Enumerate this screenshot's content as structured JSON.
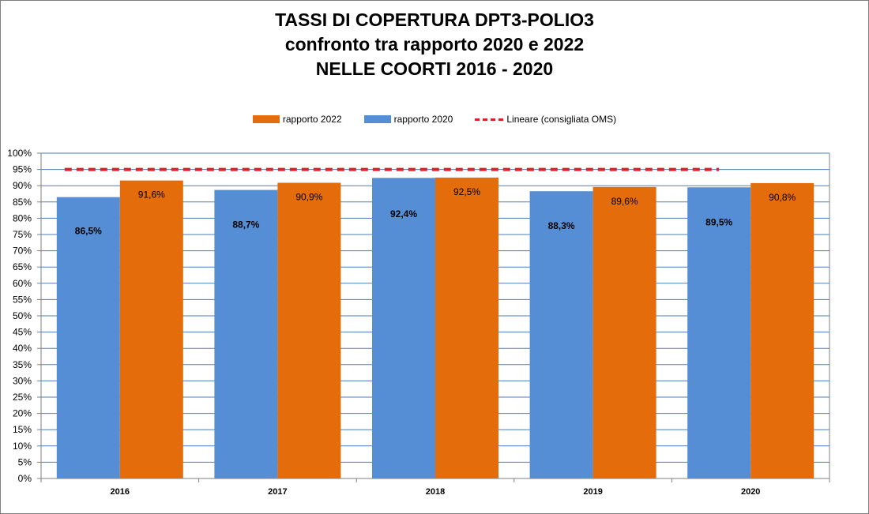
{
  "chart_data": {
    "type": "bar",
    "title": [
      "TASSI DI COPERTURA DPT3-POLIO3",
      "confronto tra rapporto 2020 e 2022",
      "NELLE COORTI 2016 - 2020"
    ],
    "categories": [
      "2016",
      "2017",
      "2018",
      "2019",
      "2020"
    ],
    "series": [
      {
        "name": "rapporto 2020",
        "values": [
          86.5,
          88.7,
          92.4,
          88.3,
          89.5
        ],
        "labels": [
          "86,5%",
          "88,7%",
          "92,4%",
          "88,3%",
          "89,5%"
        ],
        "color": "#558ed5"
      },
      {
        "name": "rapporto 2022",
        "values": [
          91.6,
          90.9,
          92.5,
          89.6,
          90.8
        ],
        "labels": [
          "91,6%",
          "90,9%",
          "92,5%",
          "89,6%",
          "90,8%"
        ],
        "color": "#e46c0a"
      }
    ],
    "reference_line": {
      "name": "Lineare (consigliata OMS)",
      "value": 95,
      "color": "#e02020",
      "style": "dashed"
    },
    "legend_order": [
      "rapporto 2022",
      "rapporto 2020",
      "Lineare (consigliata OMS)"
    ],
    "legend_position": "top",
    "ylim": [
      0,
      100
    ],
    "yticks": [
      "0%",
      "5%",
      "10%",
      "15%",
      "20%",
      "25%",
      "30%",
      "35%",
      "40%",
      "45%",
      "50%",
      "55%",
      "60%",
      "65%",
      "70%",
      "75%",
      "80%",
      "85%",
      "90%",
      "95%",
      "100%"
    ],
    "grid": true
  },
  "legend": {
    "r2022": "rapporto 2022",
    "r2020": "rapporto 2020",
    "oms": "Lineare (consigliata OMS)"
  }
}
